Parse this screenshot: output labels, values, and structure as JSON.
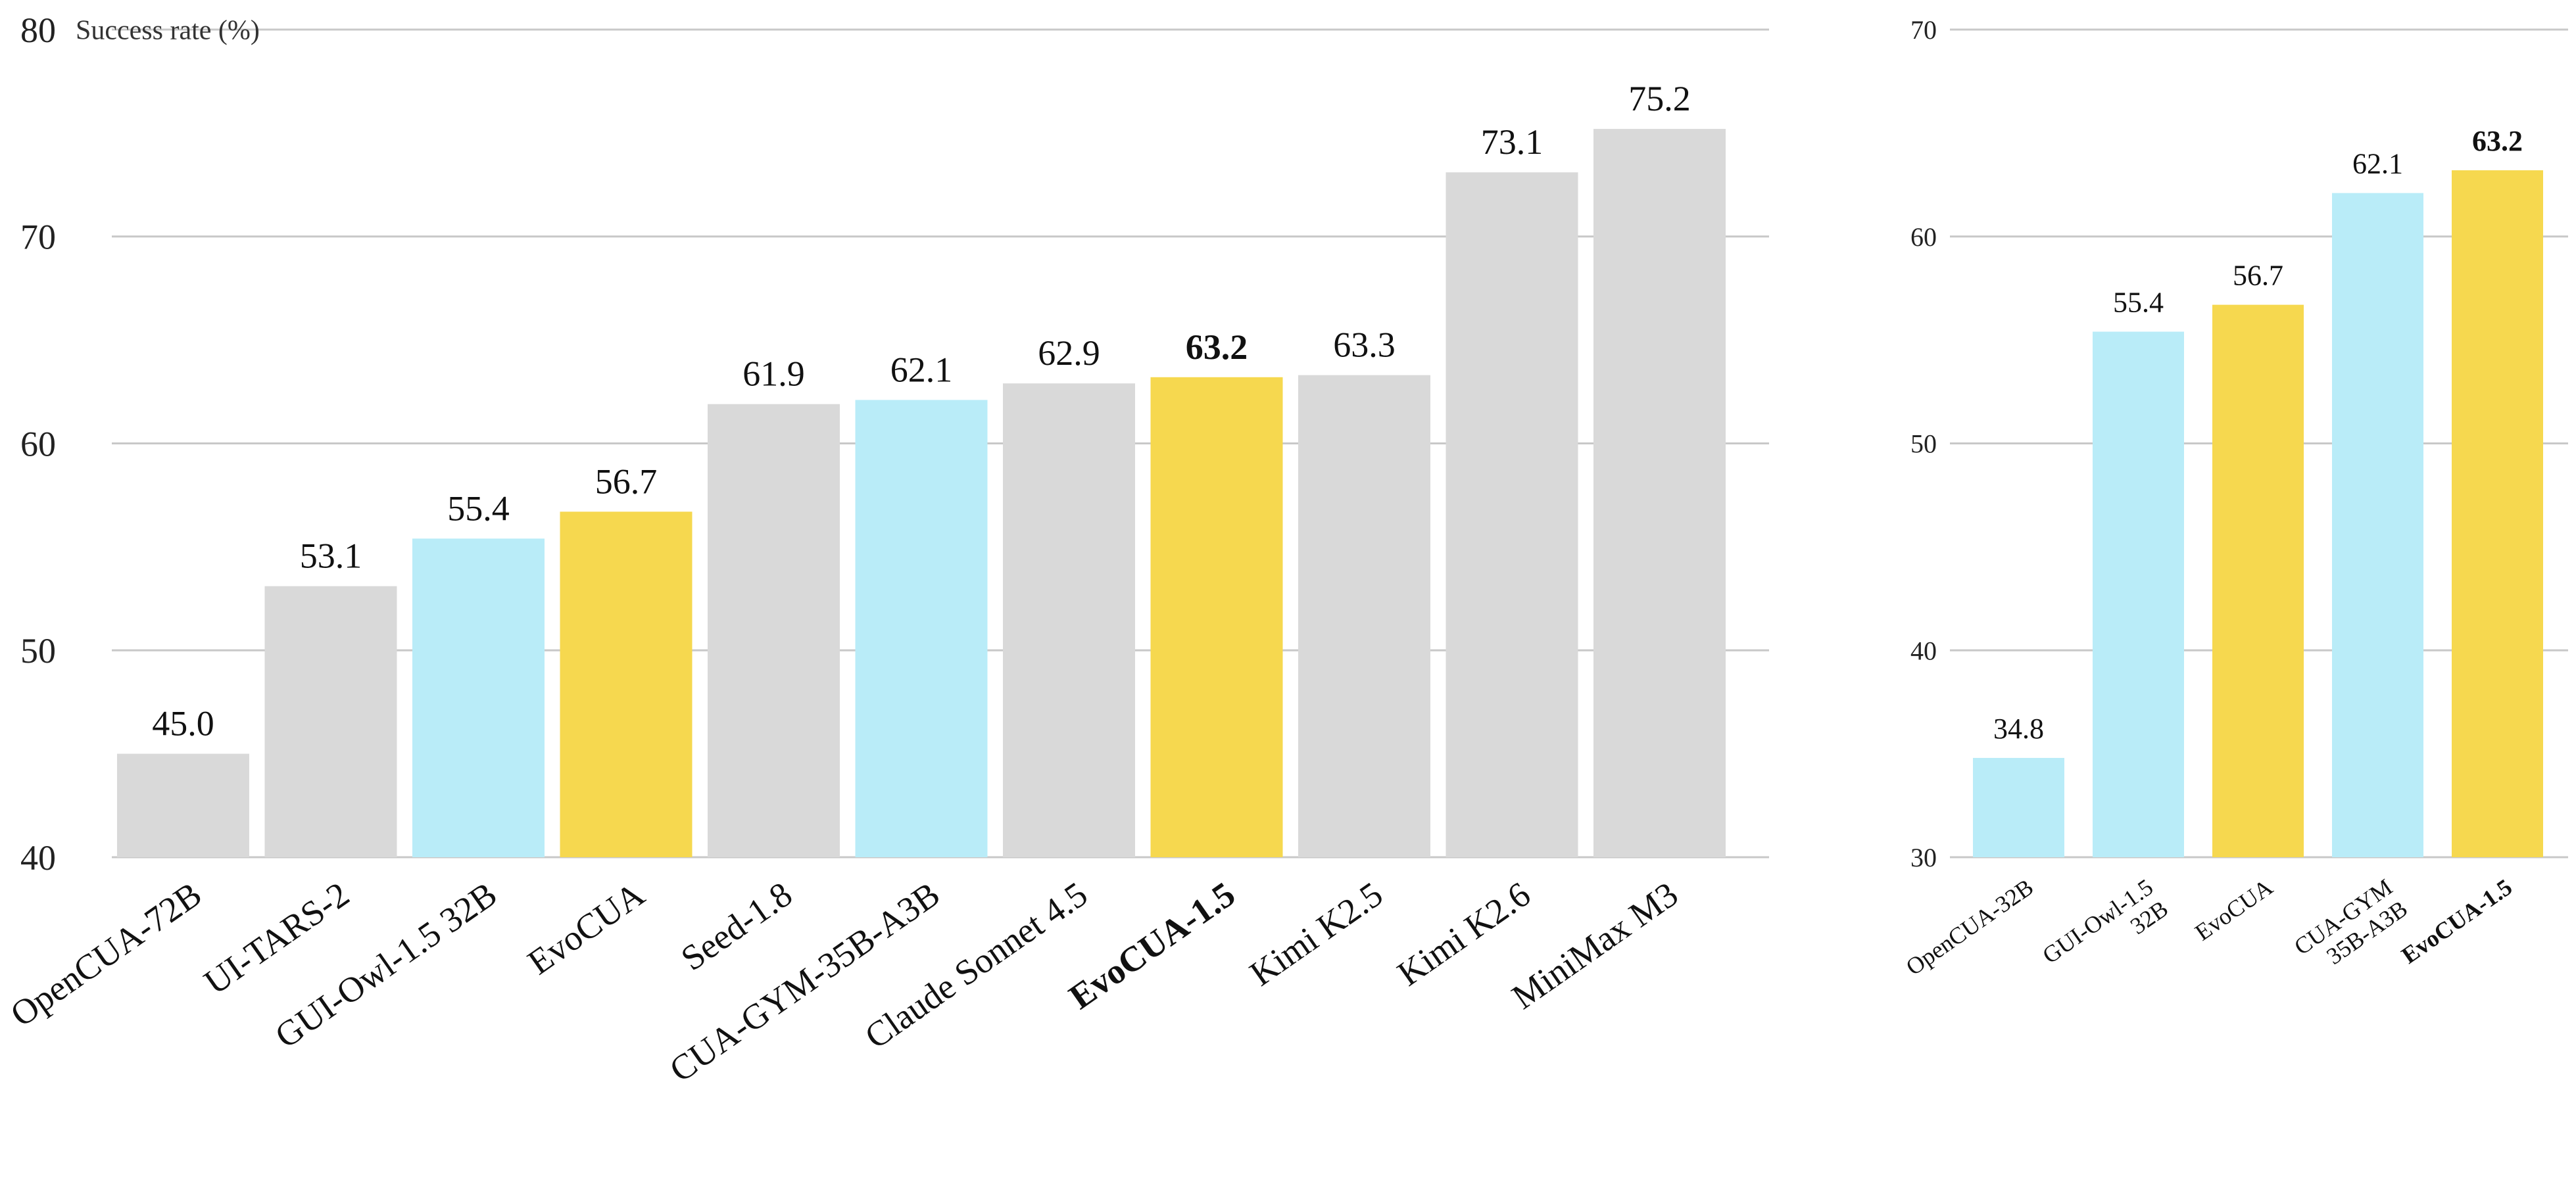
{
  "chart_data": [
    {
      "type": "bar",
      "ylabel": "Success rate (%)",
      "ylim": [
        40,
        80
      ],
      "yticks": [
        40,
        50,
        60,
        70,
        80
      ],
      "grid": true,
      "categories": [
        "OpenCUA-72B",
        "UI-TARS-2",
        "GUI-Owl-1.5 32B",
        "EvoCUA",
        "Seed-1.8",
        "CUA-GYM-35B-A3B",
        "Claude Sonnet 4.5",
        "EvoCUA-1.5",
        "Kimi K2.5",
        "Kimi K2.6",
        "MiniMax M3"
      ],
      "values": [
        45.0,
        53.1,
        55.4,
        56.7,
        61.9,
        62.1,
        62.9,
        63.2,
        63.3,
        73.1,
        75.2
      ],
      "value_labels": [
        "45.0",
        "53.1",
        "55.4",
        "56.7",
        "61.9",
        "62.1",
        "62.9",
        "63.2",
        "63.3",
        "73.1",
        "75.2"
      ],
      "colors": [
        "#d9d9d9",
        "#d9d9d9",
        "#b9ecf8",
        "#f6d84f",
        "#d9d9d9",
        "#b9ecf8",
        "#d9d9d9",
        "#f6d84f",
        "#d9d9d9",
        "#d9d9d9",
        "#d9d9d9"
      ],
      "bold": [
        false,
        false,
        false,
        false,
        false,
        false,
        false,
        true,
        false,
        false,
        false
      ]
    },
    {
      "type": "bar",
      "ylim": [
        30,
        70
      ],
      "yticks": [
        30,
        40,
        50,
        60,
        70
      ],
      "grid": true,
      "categories": [
        [
          "OpenCUA-32B"
        ],
        [
          "GUI-Owl-1.5",
          "32B"
        ],
        [
          "EvoCUA"
        ],
        [
          "CUA-GYM",
          "35B-A3B"
        ],
        [
          "EvoCUA-1.5"
        ]
      ],
      "values": [
        34.8,
        55.4,
        56.7,
        62.1,
        63.2
      ],
      "value_labels": [
        "34.8",
        "55.4",
        "56.7",
        "62.1",
        "63.2"
      ],
      "colors": [
        "#b9ecf8",
        "#b9ecf8",
        "#f6d84f",
        "#b9ecf8",
        "#f6d84f"
      ],
      "bold": [
        false,
        false,
        false,
        false,
        true
      ]
    }
  ]
}
